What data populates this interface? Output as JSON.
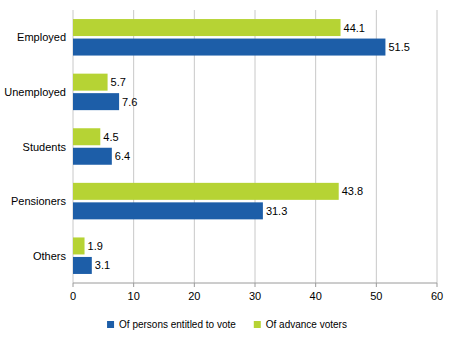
{
  "chart_data": {
    "type": "bar",
    "orientation": "horizontal",
    "categories": [
      "Employed",
      "Unemployed",
      "Students",
      "Pensioners",
      "Others"
    ],
    "series": [
      {
        "name": "Of persons entitled to vote",
        "color": "#1d5ea8",
        "values": [
          51.5,
          7.6,
          6.4,
          31.3,
          3.1
        ]
      },
      {
        "name": "Of advance voters",
        "color": "#b6d334",
        "values": [
          44.1,
          5.7,
          4.5,
          43.8,
          1.9
        ]
      }
    ],
    "xlim": [
      0,
      60
    ],
    "xticks": [
      0,
      10,
      20,
      30,
      40,
      50,
      60
    ],
    "grid": true,
    "legend": "bottom",
    "data_labels": true
  }
}
